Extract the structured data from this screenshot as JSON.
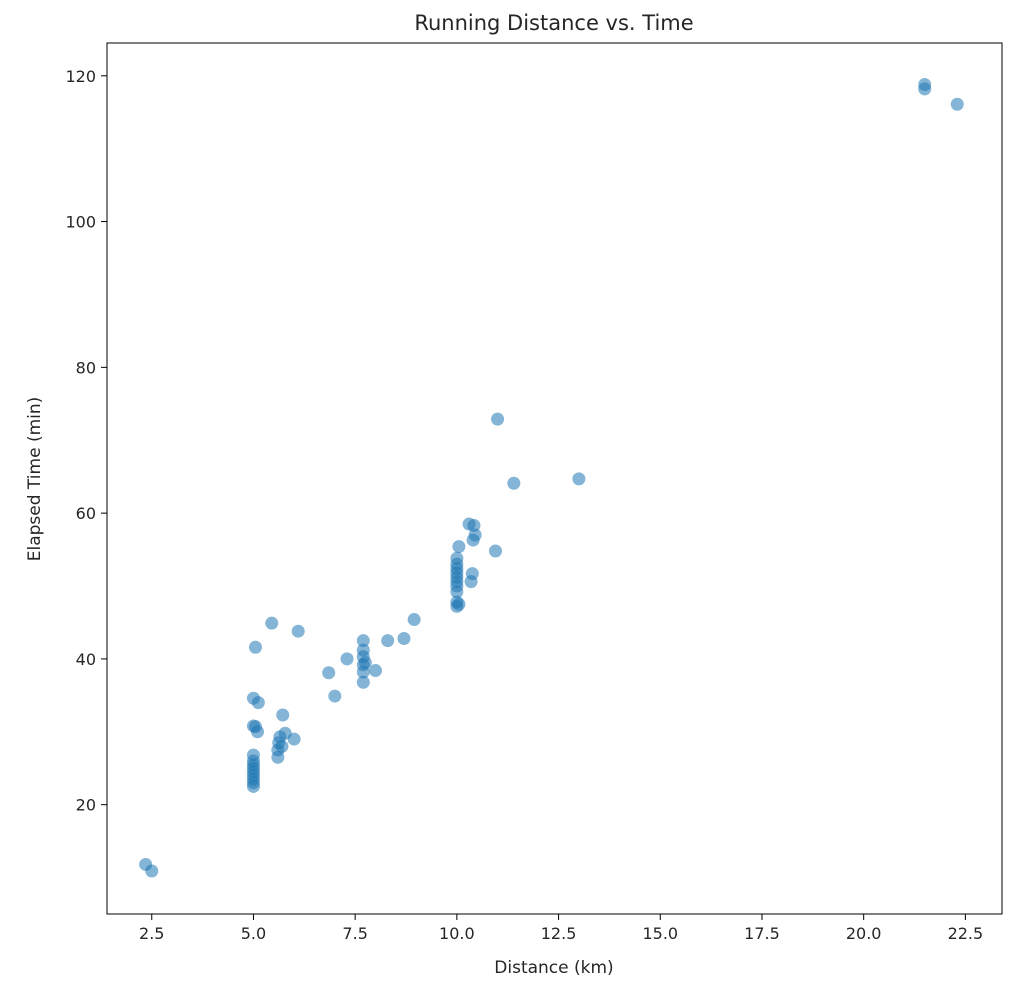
{
  "chart_data": {
    "type": "scatter",
    "title": "Running Distance vs. Time",
    "xlabel": "Distance (km)",
    "ylabel": "Elapsed Time (min)",
    "xlim": [
      1.4,
      23.4
    ],
    "ylim": [
      5.0,
      124.5
    ],
    "xticks": [
      2.5,
      5.0,
      7.5,
      10.0,
      12.5,
      15.0,
      17.5,
      20.0,
      22.5
    ],
    "xtick_labels": [
      "2.5",
      "5.0",
      "7.5",
      "10.0",
      "12.5",
      "15.0",
      "17.5",
      "20.0",
      "22.5"
    ],
    "yticks": [
      20,
      40,
      60,
      80,
      100,
      120
    ],
    "ytick_labels": [
      "20",
      "40",
      "60",
      "80",
      "100",
      "120"
    ],
    "grid": false,
    "legend": false,
    "marker_color": "#1f77b4",
    "marker_alpha": 0.55,
    "points": [
      {
        "x": 2.35,
        "y": 11.8
      },
      {
        "x": 2.5,
        "y": 10.9
      },
      {
        "x": 5.0,
        "y": 22.5
      },
      {
        "x": 5.0,
        "y": 23.0
      },
      {
        "x": 5.0,
        "y": 23.5
      },
      {
        "x": 5.0,
        "y": 24.0
      },
      {
        "x": 5.0,
        "y": 24.5
      },
      {
        "x": 5.0,
        "y": 25.0
      },
      {
        "x": 5.0,
        "y": 25.5
      },
      {
        "x": 5.0,
        "y": 26.0
      },
      {
        "x": 5.0,
        "y": 26.8
      },
      {
        "x": 5.0,
        "y": 30.8
      },
      {
        "x": 5.0,
        "y": 34.6
      },
      {
        "x": 5.05,
        "y": 41.6
      },
      {
        "x": 5.05,
        "y": 30.7
      },
      {
        "x": 5.1,
        "y": 30.0
      },
      {
        "x": 5.12,
        "y": 34.0
      },
      {
        "x": 5.45,
        "y": 44.9
      },
      {
        "x": 5.6,
        "y": 26.5
      },
      {
        "x": 5.6,
        "y": 27.5
      },
      {
        "x": 5.62,
        "y": 28.5
      },
      {
        "x": 5.65,
        "y": 29.3
      },
      {
        "x": 5.7,
        "y": 28.0
      },
      {
        "x": 5.72,
        "y": 32.3
      },
      {
        "x": 5.78,
        "y": 29.8
      },
      {
        "x": 6.0,
        "y": 29.0
      },
      {
        "x": 6.1,
        "y": 43.8
      },
      {
        "x": 6.85,
        "y": 38.1
      },
      {
        "x": 7.0,
        "y": 34.9
      },
      {
        "x": 7.3,
        "y": 40.0
      },
      {
        "x": 7.7,
        "y": 36.8
      },
      {
        "x": 7.7,
        "y": 38.2
      },
      {
        "x": 7.7,
        "y": 39.2
      },
      {
        "x": 7.7,
        "y": 40.3
      },
      {
        "x": 7.7,
        "y": 41.2
      },
      {
        "x": 7.7,
        "y": 42.5
      },
      {
        "x": 7.75,
        "y": 39.5
      },
      {
        "x": 8.0,
        "y": 38.4
      },
      {
        "x": 8.3,
        "y": 42.5
      },
      {
        "x": 8.7,
        "y": 42.8
      },
      {
        "x": 8.95,
        "y": 45.4
      },
      {
        "x": 10.0,
        "y": 47.2
      },
      {
        "x": 10.0,
        "y": 47.8
      },
      {
        "x": 10.0,
        "y": 49.2
      },
      {
        "x": 10.0,
        "y": 50.0
      },
      {
        "x": 10.0,
        "y": 50.6
      },
      {
        "x": 10.0,
        "y": 51.2
      },
      {
        "x": 10.0,
        "y": 51.8
      },
      {
        "x": 10.0,
        "y": 52.4
      },
      {
        "x": 10.0,
        "y": 53.0
      },
      {
        "x": 10.0,
        "y": 53.8
      },
      {
        "x": 10.05,
        "y": 55.4
      },
      {
        "x": 10.05,
        "y": 47.5
      },
      {
        "x": 10.3,
        "y": 58.5
      },
      {
        "x": 10.35,
        "y": 50.6
      },
      {
        "x": 10.38,
        "y": 51.7
      },
      {
        "x": 10.4,
        "y": 56.3
      },
      {
        "x": 10.42,
        "y": 58.3
      },
      {
        "x": 10.45,
        "y": 57.0
      },
      {
        "x": 10.95,
        "y": 54.8
      },
      {
        "x": 11.0,
        "y": 72.9
      },
      {
        "x": 11.4,
        "y": 64.1
      },
      {
        "x": 13.0,
        "y": 64.7
      },
      {
        "x": 21.5,
        "y": 118.2
      },
      {
        "x": 21.5,
        "y": 118.8
      },
      {
        "x": 22.3,
        "y": 116.1
      }
    ]
  }
}
